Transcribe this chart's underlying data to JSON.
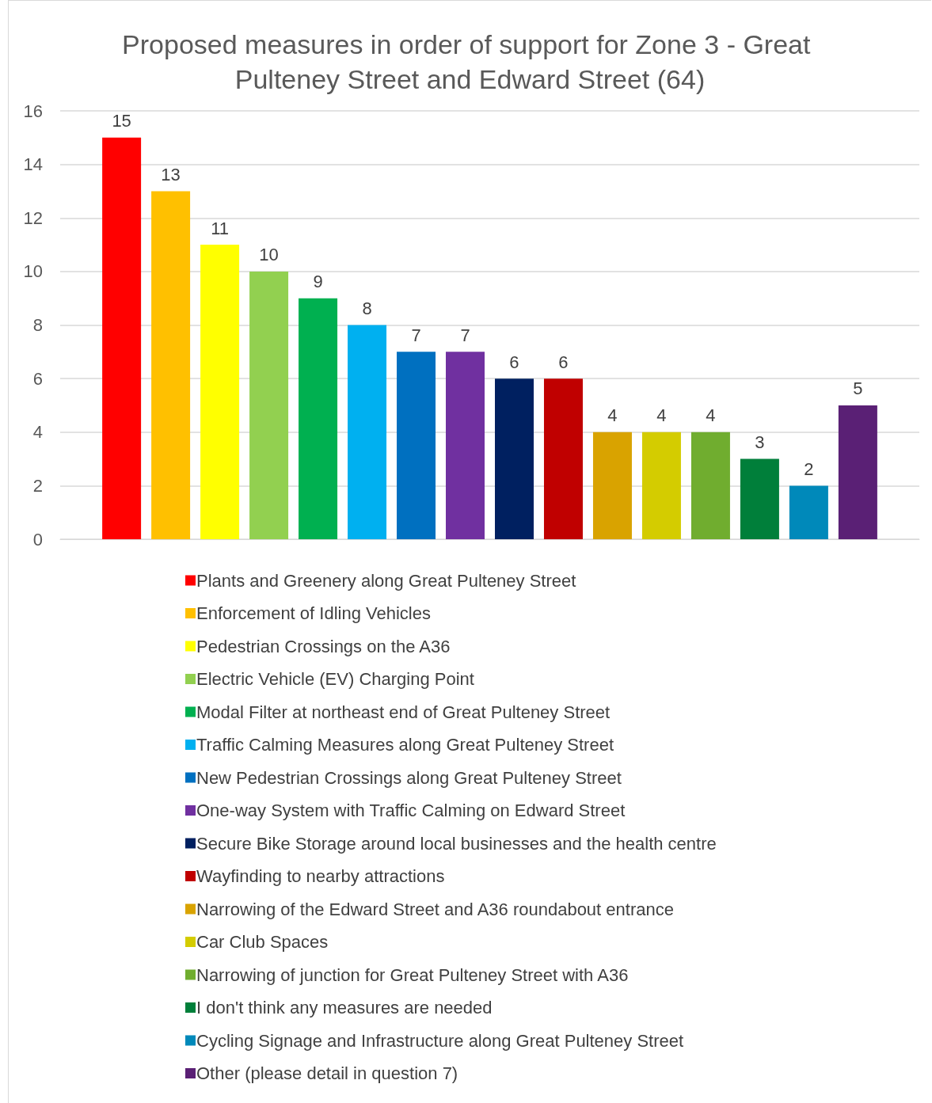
{
  "chart_data": {
    "type": "bar",
    "title": "Proposed measures in order of support for Zone 3 - Great Pulteney Street and Edward Street (64)",
    "categories": [
      null
    ],
    "series": [
      {
        "name": "Plants and Greenery along Great Pulteney Street",
        "color": "#ff0000",
        "values": [
          15
        ]
      },
      {
        "name": "Enforcement of Idling Vehicles",
        "color": "#ffc000",
        "values": [
          13
        ]
      },
      {
        "name": "Pedestrian Crossings on the A36",
        "color": "#ffff00",
        "values": [
          11
        ]
      },
      {
        "name": "Electric Vehicle (EV) Charging Point",
        "color": "#92d050",
        "values": [
          10
        ]
      },
      {
        "name": "Modal Filter at northeast end of Great Pulteney Street",
        "color": "#00b050",
        "values": [
          9
        ]
      },
      {
        "name": "Traffic Calming Measures along Great Pulteney Street",
        "color": "#00b0f0",
        "values": [
          8
        ]
      },
      {
        "name": "New Pedestrian Crossings along Great Pulteney Street",
        "color": "#0070c0",
        "values": [
          7
        ]
      },
      {
        "name": "One-way System with Traffic Calming on Edward Street",
        "color": "#7030a0",
        "values": [
          7
        ]
      },
      {
        "name": "Secure Bike Storage around local businesses and the health centre",
        "color": "#002060",
        "values": [
          6
        ]
      },
      {
        "name": "Wayfinding to nearby attractions",
        "color": "#c00000",
        "values": [
          6
        ]
      },
      {
        "name": "Narrowing of the Edward Street and A36 roundabout entrance",
        "color": "#d9a300",
        "values": [
          4
        ]
      },
      {
        "name": "Car Club Spaces",
        "color": "#d4cc00",
        "values": [
          4
        ]
      },
      {
        "name": "Narrowing of junction for Great Pulteney Street with A36",
        "color": "#70ad2f",
        "values": [
          4
        ]
      },
      {
        "name": "I don't think any measures are needed",
        "color": "#007f3a",
        "values": [
          3
        ]
      },
      {
        "name": "Cycling Signage and Infrastructure along Great Pulteney Street",
        "color": "#0089ba",
        "values": [
          2
        ]
      },
      {
        "name": "Other (please detail in question 7)",
        "color": "#5a2075",
        "values": [
          5
        ]
      }
    ],
    "ylim": [
      0,
      16
    ],
    "yticks": [
      0,
      2,
      4,
      6,
      8,
      10,
      12,
      14,
      16
    ],
    "grid": "y",
    "legend": "bottom",
    "data_labels": true,
    "tick_labels": "y"
  }
}
